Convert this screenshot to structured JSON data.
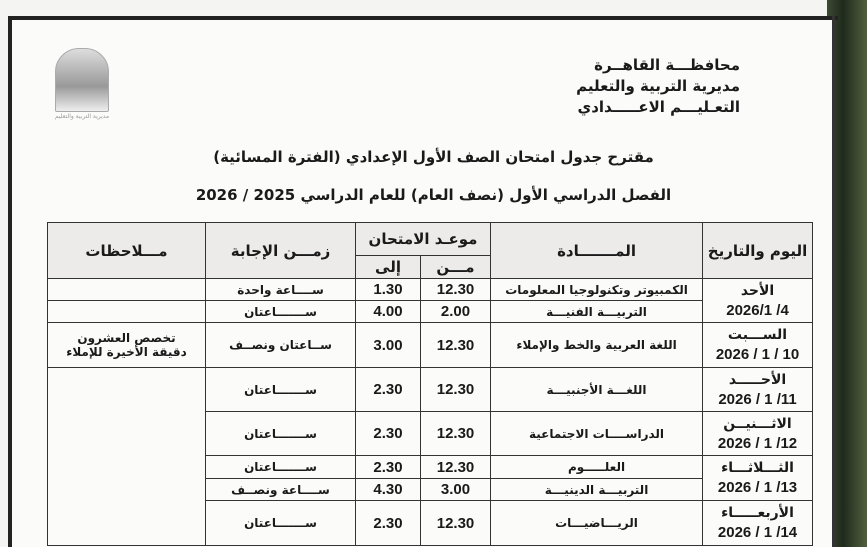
{
  "header": {
    "governorate": "محافظـــة القاهــرة",
    "directorate": "مديرية التربية والتعليم",
    "stage": "التعـليـــم الاعـــــدادي",
    "logo_caption": "مديرية التربية والتعليم"
  },
  "title": "مقترح جدول امتحان الصف الأول الإعدادي (الفترة المسائية)",
  "subtitle": "الفصل الدراسي الأول (نصف العام) للعام الدراسي 2025 / 2026",
  "table": {
    "headers": {
      "day_date": "اليوم والتاريخ",
      "subject": "المـــــــادة",
      "exam_time": "موعـد الامتحان",
      "from": "مـــن",
      "to": "إلى",
      "duration": "زمـــن الإجابة",
      "notes": "مـــلاحظات"
    },
    "days": [
      {
        "day": "الأحد",
        "date": "2026/1 /4"
      },
      {
        "day": "الســـبت",
        "date": "2026 / 1 / 10"
      },
      {
        "day": "الأحـــــد",
        "date": "2026 / 1 /11"
      },
      {
        "day": "الاثـــنيــن",
        "date": "2026 / 1 /12"
      },
      {
        "day": "الثـــلاثـــاء",
        "date": "2026 / 1 /13"
      },
      {
        "day": "الأربعـــــاء",
        "date": "2026 / 1 /14"
      }
    ],
    "rows": [
      {
        "subject": "الكمبيوتر وتكنولوجيا المعلومات",
        "from": "12.30",
        "to": "1.30",
        "duration": "ســــاعة واحدة",
        "notes": ""
      },
      {
        "subject": "التربيـــة الفنيـــة",
        "from": "2.00",
        "to": "4.00",
        "duration": "ســـــــاعتان",
        "notes": ""
      },
      {
        "subject": "اللغة العربية والخط والإملاء",
        "from": "12.30",
        "to": "3.00",
        "duration": "ســاعتان ونصــف",
        "notes": "تخصص العشرون دقيقة الأخيرة للإملاء"
      },
      {
        "subject": "اللغـــة الأجنبيـــة",
        "from": "12.30",
        "to": "2.30",
        "duration": "ســـــــاعتان",
        "notes": ""
      },
      {
        "subject": "الدراســــات الاجتماعية",
        "from": "12.30",
        "to": "2.30",
        "duration": "ســـــــاعتان",
        "notes": ""
      },
      {
        "subject": "العلـــــوم",
        "from": "12.30",
        "to": "2.30",
        "duration": "ســـــــاعتان",
        "notes": ""
      },
      {
        "subject": "التربيـــة الدينيـــة",
        "from": "3.00",
        "to": "4.30",
        "duration": "ســــاعة ونصــف",
        "notes": ""
      },
      {
        "subject": "الريـــاضيـــات",
        "from": "12.30",
        "to": "2.30",
        "duration": "ســـــــاعتان",
        "notes": ""
      }
    ]
  }
}
